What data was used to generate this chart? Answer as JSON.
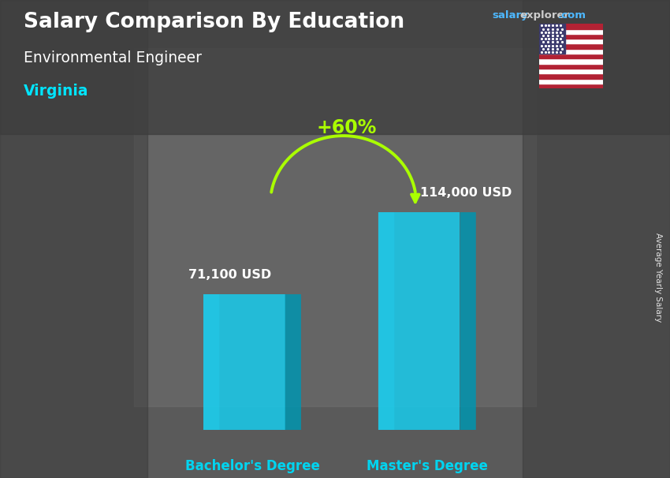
{
  "title_main": "Salary Comparison By Education",
  "subtitle": "Environmental Engineer",
  "location": "Virginia",
  "ylabel": "Average Yearly Salary",
  "categories": [
    "Bachelor's Degree",
    "Master's Degree"
  ],
  "values": [
    71100,
    114000
  ],
  "value_labels": [
    "71,100 USD",
    "114,000 USD"
  ],
  "bar_color_face": "#00d4f0",
  "bar_color_light": "#7fffff",
  "bar_color_side": "#0099b8",
  "bar_color_top": "#80f0ff",
  "pct_label": "+60%",
  "pct_color": "#aaff00",
  "arrow_color": "#aaff00",
  "bg_color": "#606060",
  "title_color": "#ffffff",
  "subtitle_color": "#ffffff",
  "location_color": "#00e5ff",
  "cat_label_color": "#00d4f0",
  "value_label_color": "#ffffff",
  "salary_color": "#4db8ff",
  "explorer_color": "#bbbbbb",
  "com_color": "#4db8ff",
  "bar_width": 0.28,
  "bar_depth": 0.055,
  "ylim": [
    0,
    155000
  ],
  "xlim": [
    -0.45,
    1.55
  ],
  "x_positions": [
    0.25,
    0.85
  ]
}
